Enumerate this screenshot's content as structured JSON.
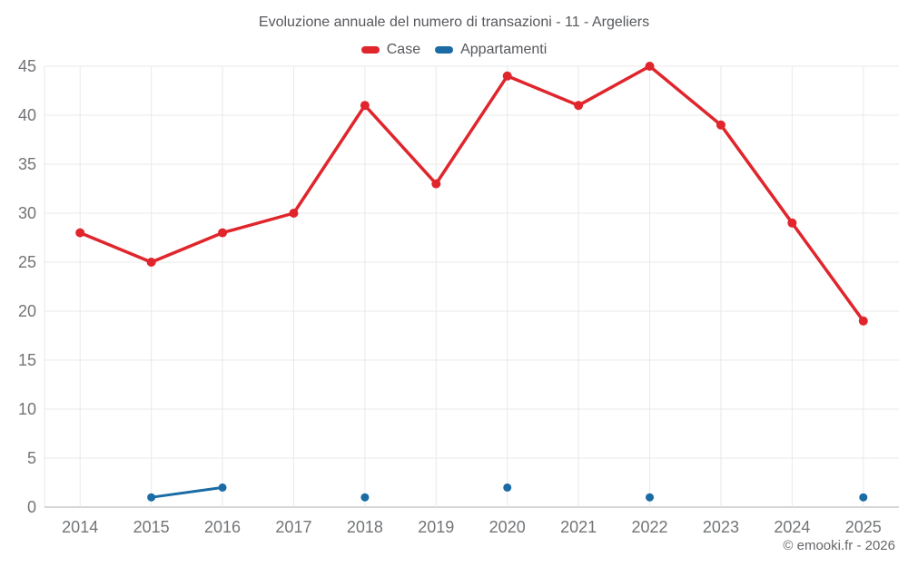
{
  "page": {
    "footer": "© emooki.fr - 2026"
  },
  "chart_data": {
    "type": "line",
    "title": "Evoluzione annuale del numero di transazioni - 11 - Argeliers",
    "categories": [
      "2014",
      "2015",
      "2016",
      "2017",
      "2018",
      "2019",
      "2020",
      "2021",
      "2022",
      "2023",
      "2024",
      "2025"
    ],
    "series": [
      {
        "name": "Case",
        "color": "#e0252c",
        "values": [
          28,
          25,
          28,
          30,
          41,
          33,
          44,
          41,
          45,
          39,
          29,
          19
        ]
      },
      {
        "name": "Appartamenti",
        "color": "#1b6ba5",
        "values": [
          null,
          1,
          2,
          null,
          1,
          null,
          2,
          null,
          1,
          null,
          null,
          1
        ]
      }
    ],
    "xlabel": "",
    "ylabel": "",
    "ylim": [
      0,
      45
    ],
    "ytick_step": 5,
    "grid": true,
    "legend_position": "top",
    "grid_color": "#e9e9e9",
    "axis_line_color": "#c8c8c8",
    "tick_label_color": "#727477",
    "title_color": "#56585c"
  }
}
